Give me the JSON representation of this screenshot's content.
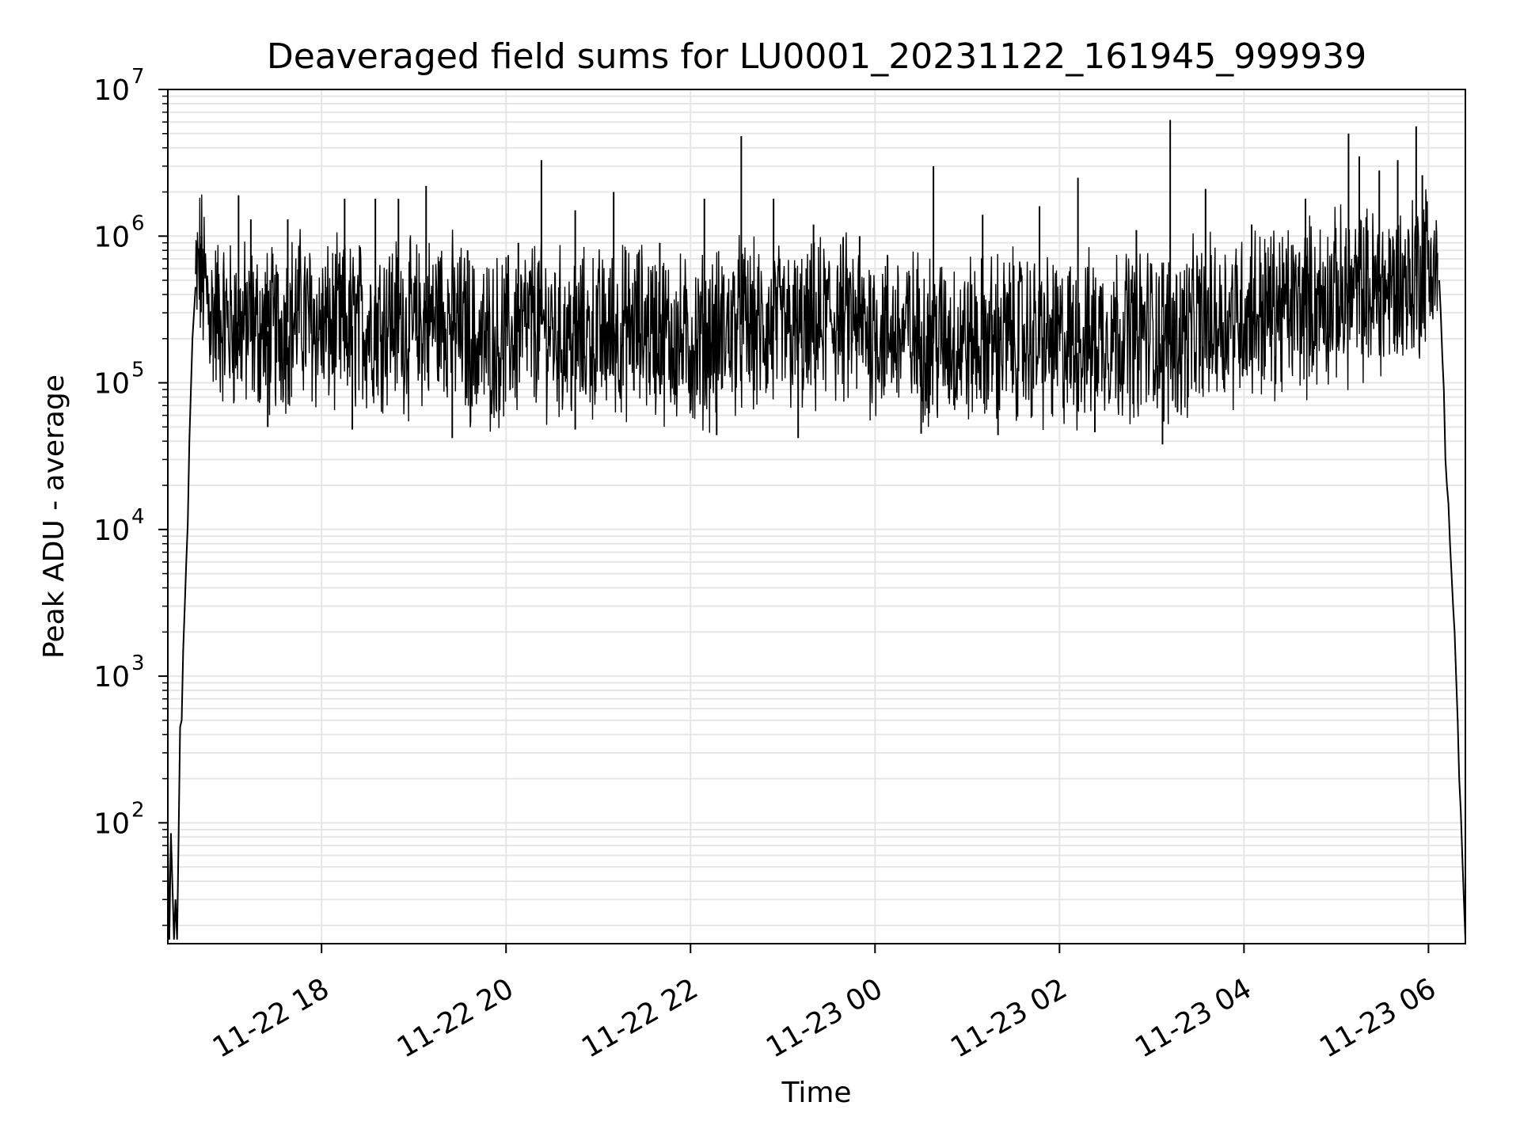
{
  "chart_data": {
    "type": "line",
    "title": "Deaveraged field sums for LU0001_20231122_161945_999939",
    "xlabel": "Time",
    "ylabel": "Peak ADU - average",
    "yscale": "log",
    "ylim": [
      15,
      10000000
    ],
    "xlim": [
      "2023-11-22 16:20",
      "2023-11-23 06:24"
    ],
    "x_ticks": [
      {
        "value": "2023-11-22 18:00",
        "label": "11-22 18"
      },
      {
        "value": "2023-11-22 20:00",
        "label": "11-22 20"
      },
      {
        "value": "2023-11-22 22:00",
        "label": "11-22 22"
      },
      {
        "value": "2023-11-23 00:00",
        "label": "11-23 00"
      },
      {
        "value": "2023-11-23 02:00",
        "label": "11-23 02"
      },
      {
        "value": "2023-11-23 04:00",
        "label": "11-23 04"
      },
      {
        "value": "2023-11-23 06:00",
        "label": "11-23 06"
      }
    ],
    "y_ticks": [
      {
        "value": 100,
        "base": "10",
        "exp": "2"
      },
      {
        "value": 1000,
        "base": "10",
        "exp": "3"
      },
      {
        "value": 10000,
        "base": "10",
        "exp": "4"
      },
      {
        "value": 100000,
        "base": "10",
        "exp": "5"
      },
      {
        "value": 1000000,
        "base": "10",
        "exp": "6"
      },
      {
        "value": 10000000,
        "base": "10",
        "exp": "7"
      }
    ],
    "grid": true,
    "line_color": "#000000",
    "grid_color": "#e6e6e6",
    "series": [
      {
        "x": [
          "2023-11-22 16:20",
          "2023-11-22 16:21",
          "2023-11-22 16:22",
          "2023-11-22 16:24",
          "2023-11-22 16:25",
          "2023-11-22 16:26",
          "2023-11-22 16:27",
          "2023-11-22 16:28",
          "2023-11-22 16:29",
          "2023-11-22 16:30",
          "2023-11-22 16:31",
          "2023-11-22 16:32",
          "2023-11-22 16:33",
          "2023-11-22 16:34",
          "2023-11-22 16:36",
          "2023-11-22 16:38",
          "2023-11-22 16:41",
          "2023-11-22 16:44",
          "2023-11-22 16:48",
          "2023-11-22 17:00",
          "2023-11-22 17:30",
          "2023-11-22 17:45",
          "2023-11-22 18:00",
          "2023-11-22 18:30",
          "2023-11-22 18:45",
          "2023-11-22 19:00",
          "2023-11-22 19:20",
          "2023-11-22 19:40",
          "2023-11-22 20:00",
          "2023-11-22 20:20",
          "2023-11-22 20:40",
          "2023-11-22 21:00",
          "2023-11-22 21:30",
          "2023-11-22 22:00",
          "2023-11-22 22:33",
          "2023-11-22 22:45",
          "2023-11-22 23:00",
          "2023-11-22 23:15",
          "2023-11-22 23:30",
          "2023-11-23 00:00",
          "2023-11-23 00:40",
          "2023-11-23 01:00",
          "2023-11-23 01:30",
          "2023-11-23 02:00",
          "2023-11-23 02:15",
          "2023-11-23 02:30",
          "2023-11-23 03:00",
          "2023-11-23 03:12",
          "2023-11-23 03:30",
          "2023-11-23 04:00",
          "2023-11-23 04:30",
          "2023-11-23 05:00",
          "2023-11-23 05:15",
          "2023-11-23 05:30",
          "2023-11-23 05:50",
          "2023-11-23 06:00",
          "2023-11-23 06:05",
          "2023-11-23 06:07",
          "2023-11-23 06:08",
          "2023-11-23 06:09",
          "2023-11-23 06:10",
          "2023-11-23 06:11",
          "2023-11-23 06:12",
          "2023-11-23 06:13",
          "2023-11-23 06:14",
          "2023-11-23 06:15",
          "2023-11-23 06:16",
          "2023-11-23 06:17",
          "2023-11-23 06:18",
          "2023-11-23 06:19",
          "2023-11-23 06:20",
          "2023-11-23 06:21",
          "2023-11-23 06:22",
          "2023-11-23 06:23",
          "2023-11-23 06:24"
        ],
        "y": [
          80,
          16,
          85,
          16,
          30,
          16,
          80,
          450,
          500,
          1500,
          3000,
          6000,
          11000,
          40000,
          200000,
          450000,
          600000,
          450000,
          300000,
          250000,
          220000,
          300000,
          230000,
          250000,
          280000,
          230000,
          300000,
          180000,
          200000,
          260000,
          200000,
          210000,
          240000,
          180000,
          250000,
          220000,
          230000,
          200000,
          280000,
          230000,
          200000,
          190000,
          210000,
          180000,
          190000,
          220000,
          230000,
          200000,
          240000,
          300000,
          320000,
          380000,
          400000,
          420000,
          500000,
          700000,
          600000,
          500000,
          300000,
          150000,
          90000,
          30000,
          20000,
          15000,
          8000,
          5000,
          3000,
          2000,
          1000,
          500,
          200,
          120,
          60,
          30,
          16
        ]
      }
    ],
    "spikes": [
      {
        "x": "2023-11-22 16:42",
        "y": 1000000
      },
      {
        "x": "2023-11-22 17:06",
        "y": 1900000
      },
      {
        "x": "2023-11-22 17:14",
        "y": 1300000
      },
      {
        "x": "2023-11-22 17:38",
        "y": 1300000
      },
      {
        "x": "2023-11-22 18:15",
        "y": 1800000
      },
      {
        "x": "2023-11-22 18:35",
        "y": 1800000
      },
      {
        "x": "2023-11-22 18:50",
        "y": 1800000
      },
      {
        "x": "2023-11-22 19:08",
        "y": 2200000
      },
      {
        "x": "2023-11-22 19:35",
        "y": 800000
      },
      {
        "x": "2023-11-22 20:08",
        "y": 900000
      },
      {
        "x": "2023-11-22 20:23",
        "y": 3300000
      },
      {
        "x": "2023-11-22 20:45",
        "y": 1500000
      },
      {
        "x": "2023-11-22 21:10",
        "y": 2000000
      },
      {
        "x": "2023-11-22 21:40",
        "y": 900000
      },
      {
        "x": "2023-11-22 22:09",
        "y": 1800000
      },
      {
        "x": "2023-11-22 22:33",
        "y": 4800000
      },
      {
        "x": "2023-11-22 22:54",
        "y": 1800000
      },
      {
        "x": "2023-11-22 23:20",
        "y": 1200000
      },
      {
        "x": "2023-11-22 23:50",
        "y": 1000000
      },
      {
        "x": "2023-11-23 00:38",
        "y": 3000000
      },
      {
        "x": "2023-11-23 01:10",
        "y": 1400000
      },
      {
        "x": "2023-11-23 01:47",
        "y": 1600000
      },
      {
        "x": "2023-11-23 02:12",
        "y": 2500000
      },
      {
        "x": "2023-11-23 02:50",
        "y": 1100000
      },
      {
        "x": "2023-11-23 03:12",
        "y": 6200000
      },
      {
        "x": "2023-11-23 03:35",
        "y": 2100000
      },
      {
        "x": "2023-11-23 04:05",
        "y": 1200000
      },
      {
        "x": "2023-11-23 04:40",
        "y": 1800000
      },
      {
        "x": "2023-11-23 05:08",
        "y": 5000000
      },
      {
        "x": "2023-11-23 05:15",
        "y": 3500000
      },
      {
        "x": "2023-11-23 05:28",
        "y": 2800000
      },
      {
        "x": "2023-11-23 05:40",
        "y": 3300000
      },
      {
        "x": "2023-11-23 05:52",
        "y": 5600000
      },
      {
        "x": "2023-11-23 05:56",
        "y": 2600000
      }
    ],
    "dips": [
      {
        "x": "2023-11-22 17:25",
        "y": 50000
      },
      {
        "x": "2023-11-22 18:20",
        "y": 48000
      },
      {
        "x": "2023-11-22 19:25",
        "y": 42000
      },
      {
        "x": "2023-11-22 20:45",
        "y": 48000
      },
      {
        "x": "2023-11-22 22:17",
        "y": 44000
      },
      {
        "x": "2023-11-22 23:10",
        "y": 42000
      },
      {
        "x": "2023-11-23 00:30",
        "y": 45000
      },
      {
        "x": "2023-11-23 01:20",
        "y": 44000
      },
      {
        "x": "2023-11-23 02:23",
        "y": 46000
      },
      {
        "x": "2023-11-23 03:07",
        "y": 38000
      }
    ]
  }
}
